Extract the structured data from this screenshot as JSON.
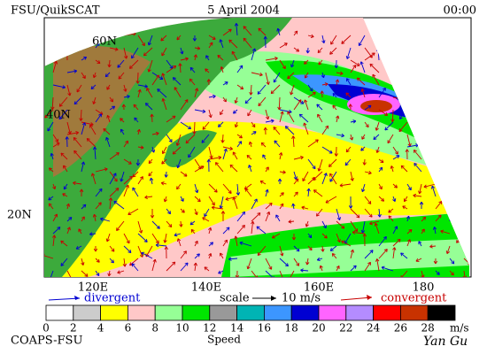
{
  "header": {
    "left": "FSU/QuikSCAT",
    "center": "5 April 2004",
    "right": "00:00"
  },
  "latitude_labels": [
    "60N",
    "40N",
    "20N"
  ],
  "longitude_labels": [
    "120E",
    "140E",
    "160E",
    "180"
  ],
  "legend": {
    "divergent": "divergent",
    "scale": "scale",
    "scale_value": "10 m/s",
    "convergent": "convergent"
  },
  "colorbar": {
    "ticks": [
      0,
      2,
      4,
      6,
      8,
      10,
      12,
      14,
      16,
      18,
      20,
      22,
      24,
      26,
      28
    ],
    "unit": "m/s",
    "label": "Speed",
    "colors": [
      "#ffffff",
      "#cccccc",
      "#ffff00",
      "#ffc8c8",
      "#96ff96",
      "#00e600",
      "#999999",
      "#00b4b4",
      "#3c96ff",
      "#0000d2",
      "#ff64ff",
      "#b48cff",
      "#ff0000",
      "#c83200",
      "#000000"
    ]
  },
  "footer": {
    "left": "COAPS-FSU",
    "right": "Yan Gu"
  }
}
